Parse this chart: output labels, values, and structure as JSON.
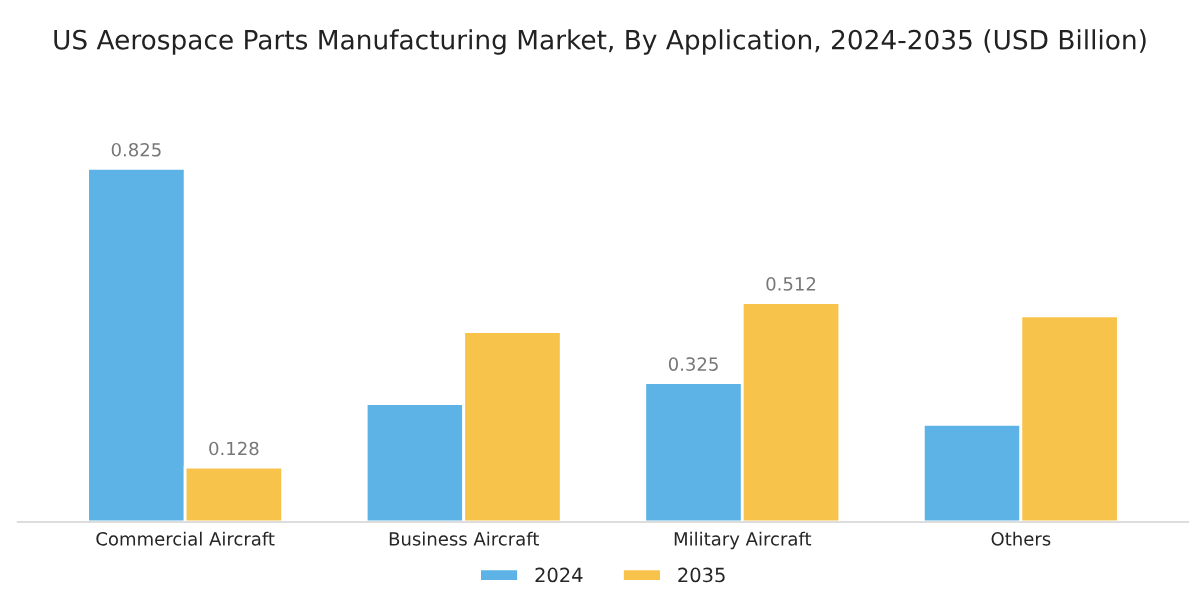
{
  "chart_data": {
    "type": "bar",
    "title": "US Aerospace Parts Manufacturing Market, By Application, 2024-2035 (USD Billion)",
    "categories": [
      "Commercial Aircraft",
      "Business Aircraft",
      "Military Aircraft",
      "Others"
    ],
    "series": [
      {
        "name": "2024",
        "color": "#5db3e6",
        "values": [
          0.825,
          0.276,
          0.325,
          0.228
        ],
        "value_labels": [
          "0.825",
          null,
          "0.325",
          null
        ]
      },
      {
        "name": "2035",
        "color": "#f8c34a",
        "values": [
          0.128,
          0.444,
          0.512,
          0.481
        ],
        "value_labels": [
          "0.128",
          null,
          "0.512",
          null
        ]
      }
    ],
    "legend": "bottom",
    "grid": false
  }
}
